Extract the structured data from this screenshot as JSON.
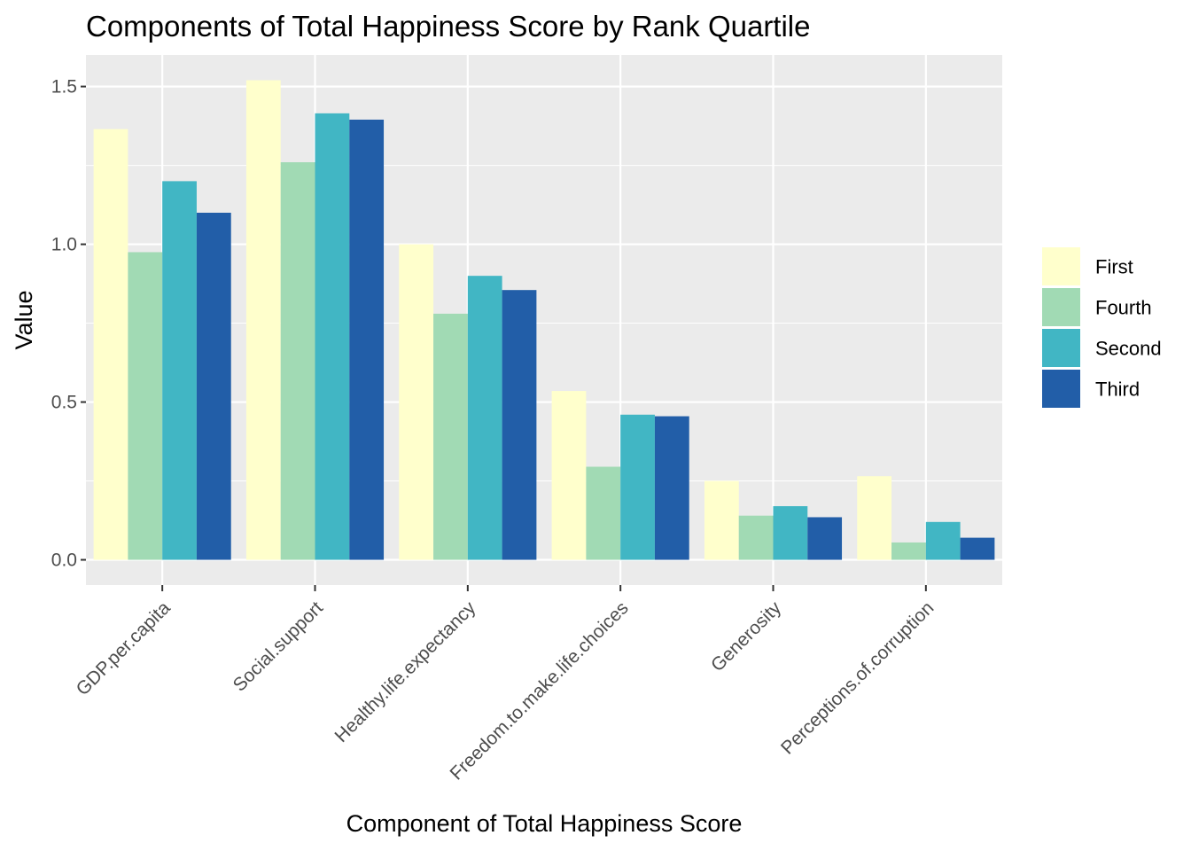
{
  "chart_data": {
    "type": "bar",
    "title": "Components of Total Happiness Score by Rank Quartile",
    "xlabel": "Component of Total Happiness Score",
    "ylabel": "Value",
    "categories": [
      "GDP.per.capita",
      "Social.support",
      "Healthy.life.expectancy",
      "Freedom.to.make.life.choices",
      "Generosity",
      "Perceptions.of.corruption"
    ],
    "series": [
      {
        "name": "First",
        "color": "#ffffcc",
        "values": [
          1.365,
          1.52,
          1.0,
          0.535,
          0.25,
          0.265
        ]
      },
      {
        "name": "Fourth",
        "color": "#a1dab4",
        "values": [
          0.975,
          1.26,
          0.78,
          0.295,
          0.14,
          0.055
        ]
      },
      {
        "name": "Second",
        "color": "#41b6c4",
        "values": [
          1.2,
          1.415,
          0.9,
          0.46,
          0.17,
          0.12
        ]
      },
      {
        "name": "Third",
        "color": "#225ea8",
        "values": [
          1.1,
          1.395,
          0.855,
          0.455,
          0.135,
          0.07
        ]
      }
    ],
    "ylim": [
      -0.08,
      1.6
    ],
    "yticks": [
      "0.0",
      "0.5",
      "1.0",
      "1.5"
    ],
    "ytick_values": [
      0.0,
      0.5,
      1.0,
      1.5
    ],
    "grid": true,
    "legend_position": "right",
    "panel_background": "#ebebeb",
    "grid_color": "#ffffff"
  }
}
